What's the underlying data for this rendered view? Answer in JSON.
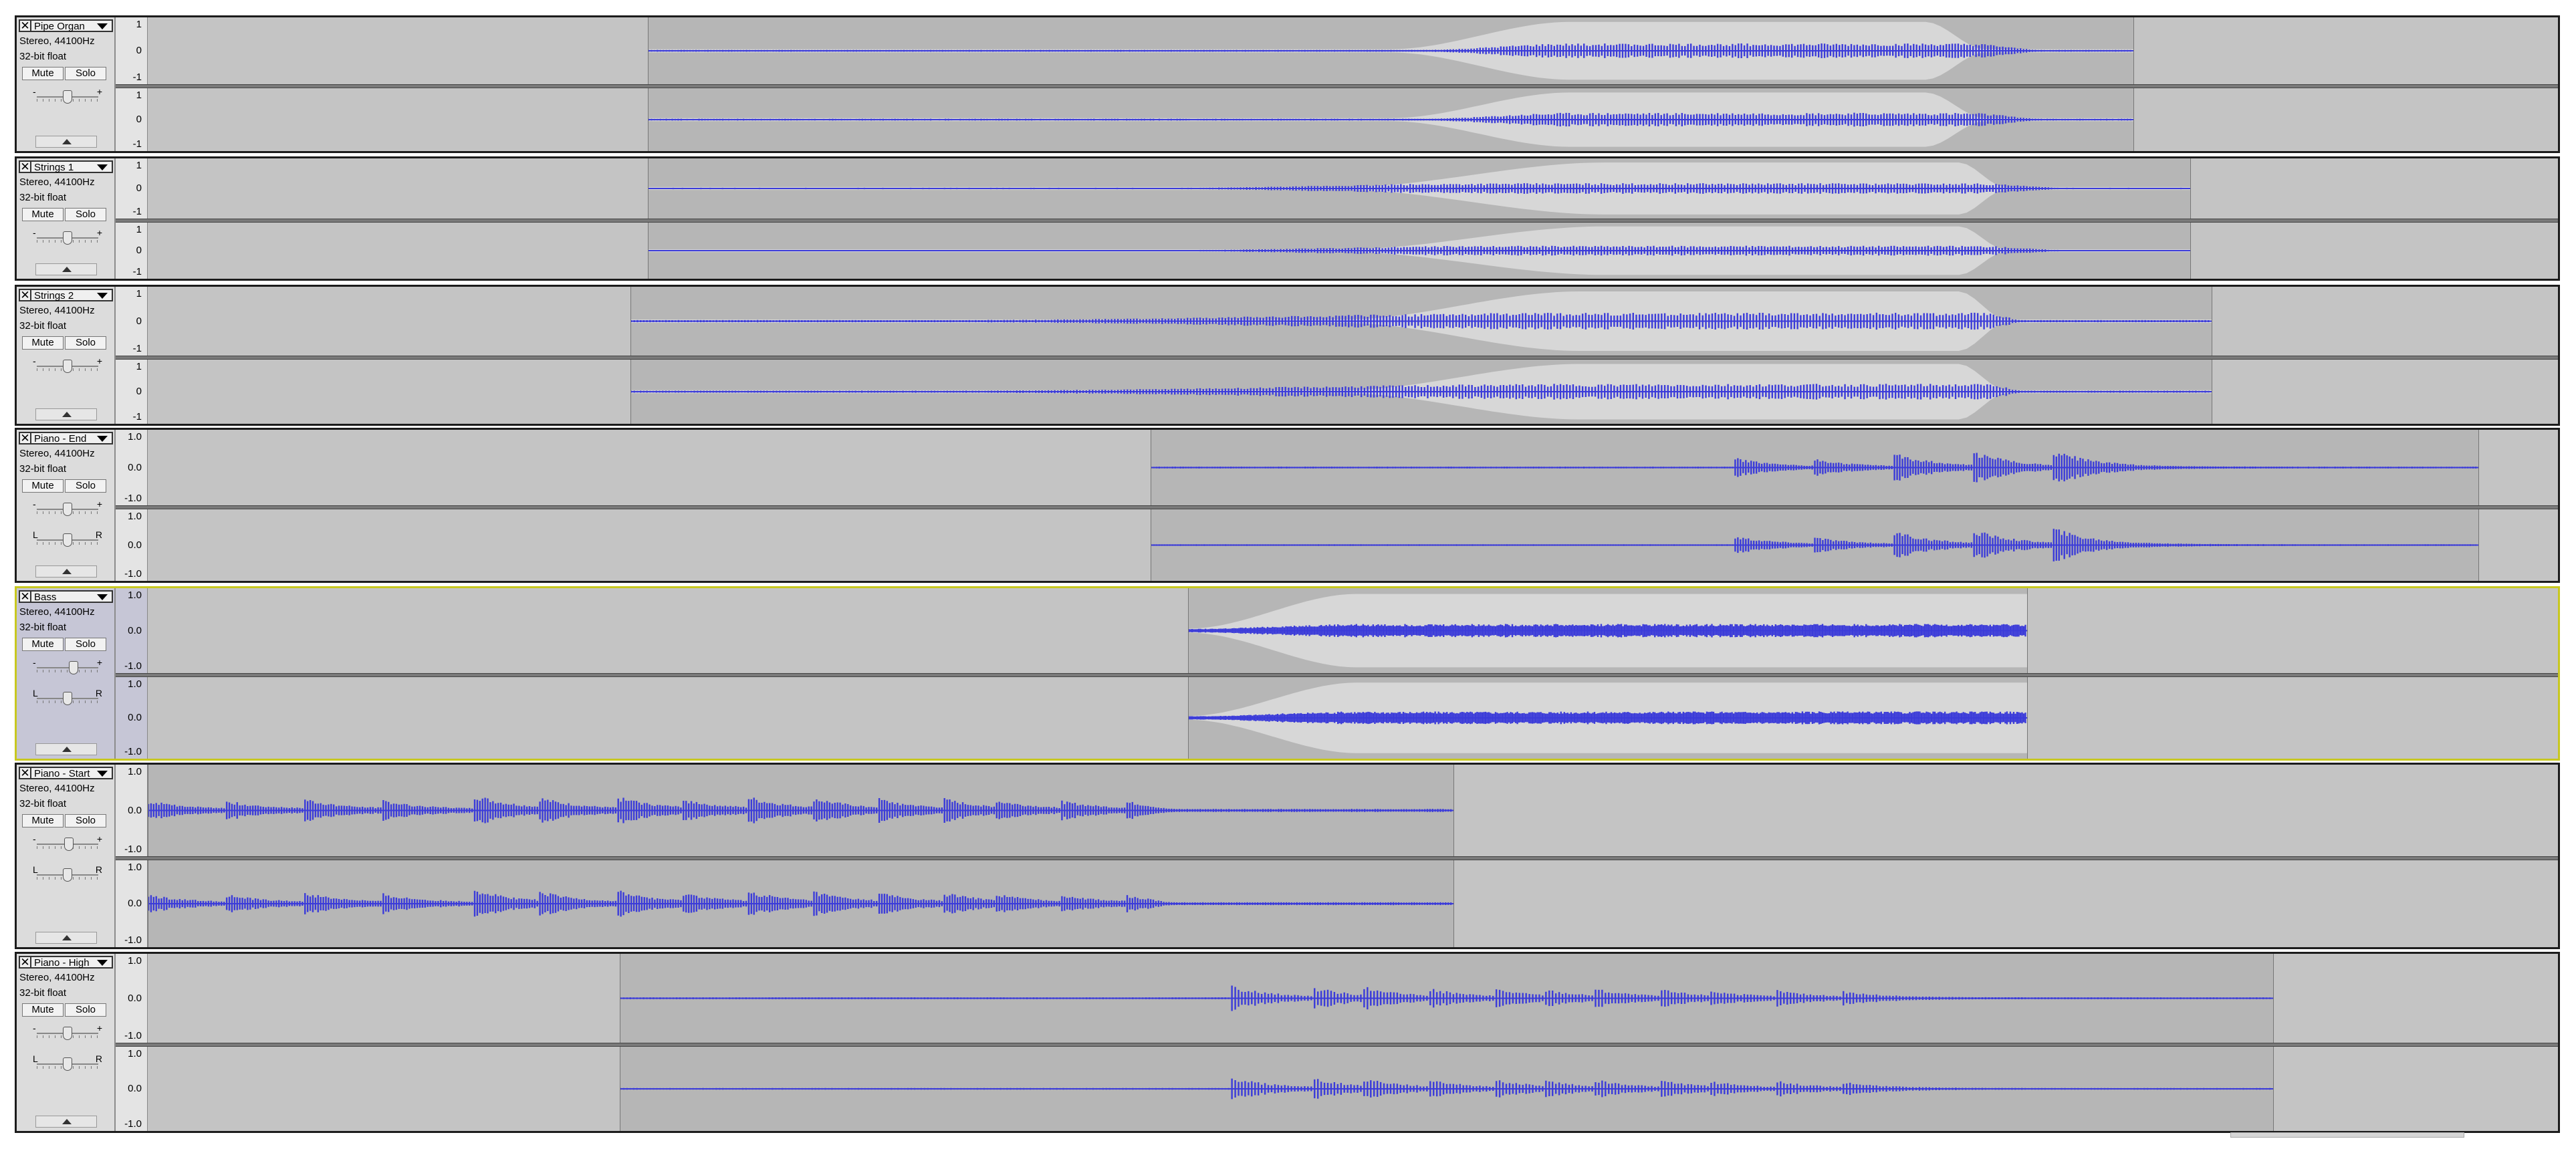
{
  "common": {
    "format": "Stereo, 44100Hz",
    "bit_depth": "32-bit float",
    "mute_label": "Mute",
    "solo_label": "Solo",
    "close_glyph": "✕",
    "gain_min": "-",
    "gain_max": "+",
    "pan_left": "L",
    "pan_right": "R"
  },
  "colors": {
    "waveform": "#3b3bd9",
    "waveform_envelope": "#d7d7d7",
    "selected_track_border": "#c8c820"
  },
  "icons": {
    "close": "close-icon",
    "track_menu": "chevron-down-icon",
    "collapse": "collapse-arrow-icon"
  },
  "tracks": [
    {
      "name": "Pipe Organ",
      "scale": [
        "1",
        "0",
        "-1"
      ],
      "has_pan": false,
      "selected": false,
      "gain": 0.5,
      "pan": 0.5
    },
    {
      "name": "Strings 1",
      "scale": [
        "1",
        "0",
        "-1"
      ],
      "has_pan": false,
      "selected": false,
      "gain": 0.5,
      "pan": 0.5
    },
    {
      "name": "Strings 2",
      "scale": [
        "1",
        "0",
        "-1"
      ],
      "has_pan": false,
      "selected": false,
      "gain": 0.5,
      "pan": 0.5
    },
    {
      "name": "Piano - End",
      "scale": [
        "1.0",
        "0.0",
        "-1.0"
      ],
      "has_pan": true,
      "selected": false,
      "gain": 0.5,
      "pan": 0.5
    },
    {
      "name": "Bass",
      "scale": [
        "1.0",
        "0.0",
        "-1.0"
      ],
      "has_pan": true,
      "selected": true,
      "gain": 0.6,
      "pan": 0.5
    },
    {
      "name": "Piano - Start",
      "scale": [
        "1.0",
        "0.0",
        "-1.0"
      ],
      "has_pan": true,
      "selected": false,
      "gain": 0.52,
      "pan": 0.5
    },
    {
      "name": "Piano - High",
      "scale": [
        "1.0",
        "0.0",
        "-1.0"
      ],
      "has_pan": true,
      "selected": false,
      "gain": 0.5,
      "pan": 0.5
    }
  ]
}
